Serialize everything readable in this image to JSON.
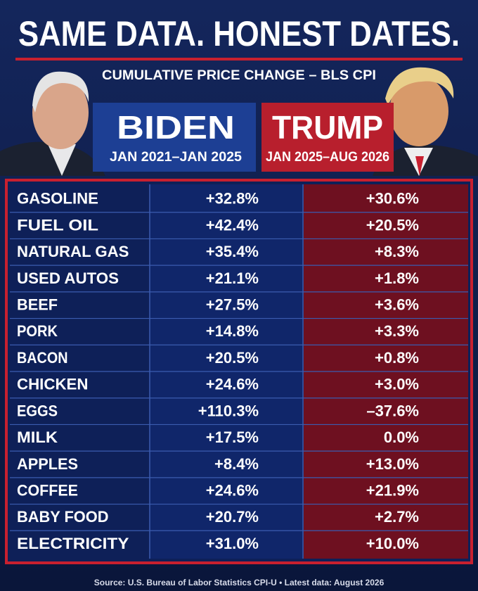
{
  "header": {
    "title": "SAME DATA. HONEST DATES.",
    "subtitle": "CUMULATIVE PRICE CHANGE – BLS CPI"
  },
  "columns": [
    {
      "name": "BIDEN",
      "dates": "JAN 2021–JAN 2025"
    },
    {
      "name": "TRUMP",
      "dates": "JAN 2025–AUG 2026"
    }
  ],
  "table": {
    "rows": [
      [
        "GASOLINE",
        "+32.8%",
        "+30.6%"
      ],
      [
        "FUEL OIL",
        "+42.4%",
        "+20.5%"
      ],
      [
        "NATURAL GAS",
        "+35.4%",
        "+8.3%"
      ],
      [
        "USED AUTOS",
        "+21.1%",
        "+1.8%"
      ],
      [
        "BEEF",
        "+27.5%",
        "+3.6%"
      ],
      [
        "PORK",
        "+14.8%",
        "+3.3%"
      ],
      [
        "BACON",
        "+20.5%",
        "+0.8%"
      ],
      [
        "CHICKEN",
        "+24.6%",
        "+3.0%"
      ],
      [
        "EGGS",
        "+110.3%",
        "–37.6%"
      ],
      [
        "MILK",
        "+17.5%",
        "0.0%"
      ],
      [
        "APPLES",
        "+8.4%",
        "+13.0%"
      ],
      [
        "COFFEE",
        "+24.6%",
        "+21.9%"
      ],
      [
        "BABY FOOD",
        "+20.7%",
        "+2.7%"
      ],
      [
        "ELECTRICITY",
        "+31.0%",
        "+10.0%"
      ]
    ]
  },
  "footer": {
    "source": "Source: U.S. Bureau of Labor Statistics CPI-U • Latest data: August 2026"
  }
}
